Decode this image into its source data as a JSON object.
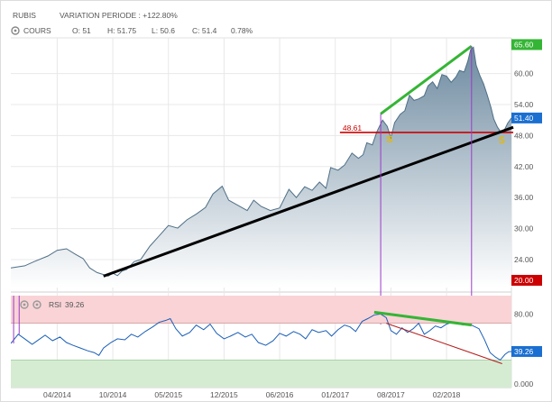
{
  "header": {
    "ticker": "RUBIS",
    "variation": "VARIATION PERIODE : +122.80%",
    "series_label": "COURS",
    "ohlc": {
      "open": "O: 51",
      "high": "H: 51.75",
      "low": "L: 50.6",
      "close": "C: 51.4",
      "change": "0.78%"
    }
  },
  "colors": {
    "price_line": "#4f6f86",
    "price_fill_top": "#6d8aa0",
    "price_fill_bottom": "#ffffff",
    "price_tag": "#1a6fd1",
    "resistance_tag": "#cc0000",
    "support_trend": "#000000",
    "horizontal_level": "#cc0000",
    "divergence_top": "#35b535",
    "divergence_rsi_low": "#b51c1c",
    "vertical_marker": "#9b3ac9",
    "rsi_line": "#1a5fb8",
    "rsi_overbought_band": "#f9d3d6",
    "rsi_oversold_band": "#d5ecd3",
    "grid": "#e8e8e8",
    "tag_text": "#ffffff",
    "change_positive": "#2c9a2c"
  },
  "chart_data": [
    {
      "type": "area",
      "title": "RUBIS",
      "series": [
        {
          "name": "COURS",
          "values": [
            [
              0.0,
              22.4
            ],
            [
              1.5,
              22.8
            ],
            [
              2.5,
              23.6
            ],
            [
              4.0,
              24.7
            ],
            [
              5.0,
              25.8
            ],
            [
              6.0,
              26.1
            ],
            [
              7.0,
              25.0
            ],
            [
              7.8,
              24.2
            ],
            [
              8.5,
              22.4
            ],
            [
              9.3,
              21.5
            ],
            [
              10.0,
              21.1
            ],
            [
              10.5,
              20.8
            ],
            [
              11.0,
              21.4
            ],
            [
              11.5,
              20.9
            ],
            [
              12.0,
              21.8
            ],
            [
              12.5,
              22.1
            ],
            [
              13.3,
              23.6
            ],
            [
              14.0,
              24.0
            ],
            [
              15.0,
              26.6
            ],
            [
              16.0,
              28.6
            ],
            [
              17.0,
              30.6
            ],
            [
              18.0,
              30.1
            ],
            [
              19.0,
              31.7
            ],
            [
              20.0,
              32.8
            ],
            [
              21.0,
              34.1
            ],
            [
              21.8,
              36.7
            ],
            [
              22.8,
              38.2
            ],
            [
              23.5,
              35.5
            ],
            [
              24.5,
              34.5
            ],
            [
              25.5,
              33.5
            ],
            [
              26.2,
              35.5
            ],
            [
              27.0,
              34.3
            ],
            [
              28.0,
              33.5
            ],
            [
              29.0,
              34.0
            ],
            [
              30.0,
              37.6
            ],
            [
              30.8,
              36.0
            ],
            [
              31.7,
              38.1
            ],
            [
              32.5,
              37.4
            ],
            [
              33.3,
              39.0
            ],
            [
              34.0,
              37.8
            ],
            [
              34.5,
              41.8
            ],
            [
              35.3,
              41.3
            ],
            [
              36.0,
              42.3
            ],
            [
              36.8,
              44.6
            ],
            [
              37.5,
              43.6
            ],
            [
              38.0,
              44.3
            ],
            [
              38.4,
              46.6
            ],
            [
              39.0,
              46.2
            ],
            [
              39.5,
              48.8
            ],
            [
              40.1,
              51.0
            ],
            [
              40.6,
              49.8
            ],
            [
              41.0,
              47.6
            ],
            [
              41.4,
              50.5
            ],
            [
              42.0,
              52.1
            ],
            [
              42.5,
              52.8
            ],
            [
              43.0,
              55.8
            ],
            [
              43.5,
              54.8
            ],
            [
              44.0,
              55.1
            ],
            [
              44.6,
              55.7
            ],
            [
              45.0,
              57.6
            ],
            [
              45.5,
              58.4
            ],
            [
              46.0,
              57.1
            ],
            [
              46.5,
              59.8
            ],
            [
              47.0,
              59.5
            ],
            [
              47.5,
              58.3
            ],
            [
              48.0,
              59.3
            ],
            [
              48.4,
              60.6
            ],
            [
              48.9,
              60.3
            ],
            [
              49.3,
              62.4
            ],
            [
              49.6,
              64.6
            ],
            [
              49.9,
              65.1
            ],
            [
              50.2,
              61.6
            ],
            [
              50.6,
              59.6
            ],
            [
              51.0,
              58.0
            ],
            [
              51.4,
              55.8
            ],
            [
              51.8,
              53.4
            ],
            [
              52.1,
              51.2
            ],
            [
              52.5,
              49.6
            ],
            [
              52.9,
              48.6
            ],
            [
              53.3,
              49.3
            ],
            [
              53.6,
              50.4
            ],
            [
              54.0,
              51.4
            ]
          ]
        }
      ],
      "x_tick_labels": [
        "04/2014",
        "10/2014",
        "05/2015",
        "12/2015",
        "06/2016",
        "01/2017",
        "08/2017",
        "02/2018"
      ],
      "x_tick_positions": [
        5,
        11,
        17,
        23,
        29,
        35,
        41,
        47
      ],
      "y_tick_labels": [
        "20.00",
        "24.00",
        "30.00",
        "36.00",
        "42.00",
        "48.00",
        "54.00",
        "60.00",
        "65.60"
      ],
      "y_ticks": [
        20,
        24,
        30,
        36,
        42,
        48,
        54,
        60,
        65.6
      ],
      "ylim": [
        18.6,
        66.9
      ],
      "xlim": [
        0,
        54
      ],
      "value_tags": {
        "resistance": "20.00",
        "upper": "65.60",
        "last": "51.40"
      },
      "annotations": {
        "level_label": "48.61",
        "level_value": 48.61,
        "support_label_1": "S",
        "support_label_2": "S",
        "trendline_support": [
          [
            10.0,
            20.8
          ],
          [
            54.2,
            49.6
          ]
        ],
        "trendline_top": [
          [
            39.9,
            52.2
          ],
          [
            49.7,
            65.3
          ]
        ],
        "horizontal_level": [
          [
            35.5,
            48.61
          ],
          [
            54.2,
            48.61
          ]
        ],
        "vertical_markers_x": [
          39.9,
          49.7
        ]
      }
    },
    {
      "type": "line",
      "title": "RSI",
      "series": [
        {
          "name": "RSI",
          "values": [
            [
              0.0,
              48
            ],
            [
              0.8,
              58
            ],
            [
              1.5,
              53
            ],
            [
              2.3,
              47
            ],
            [
              3.0,
              52
            ],
            [
              3.7,
              57
            ],
            [
              4.5,
              51
            ],
            [
              5.3,
              55
            ],
            [
              6.0,
              49
            ],
            [
              6.7,
              46
            ],
            [
              7.5,
              43
            ],
            [
              8.3,
              40
            ],
            [
              9.0,
              38
            ],
            [
              9.5,
              35
            ],
            [
              10.0,
              43
            ],
            [
              10.8,
              49
            ],
            [
              11.5,
              53
            ],
            [
              12.3,
              52
            ],
            [
              13.0,
              58
            ],
            [
              13.7,
              55
            ],
            [
              14.5,
              61
            ],
            [
              15.3,
              66
            ],
            [
              16.0,
              71
            ],
            [
              16.7,
              73
            ],
            [
              17.2,
              75
            ],
            [
              17.8,
              64
            ],
            [
              18.5,
              56
            ],
            [
              19.3,
              60
            ],
            [
              20.0,
              68
            ],
            [
              20.8,
              63
            ],
            [
              21.5,
              69
            ],
            [
              22.2,
              59
            ],
            [
              23.0,
              53
            ],
            [
              23.7,
              56
            ],
            [
              24.5,
              60
            ],
            [
              25.3,
              55
            ],
            [
              26.0,
              58
            ],
            [
              26.7,
              49
            ],
            [
              27.5,
              46
            ],
            [
              28.3,
              51
            ],
            [
              29.0,
              59
            ],
            [
              29.7,
              56
            ],
            [
              30.5,
              61
            ],
            [
              31.2,
              58
            ],
            [
              31.8,
              53
            ],
            [
              32.5,
              63
            ],
            [
              33.2,
              60
            ],
            [
              34.0,
              62
            ],
            [
              34.6,
              56
            ],
            [
              35.3,
              63
            ],
            [
              36.0,
              68
            ],
            [
              36.6,
              66
            ],
            [
              37.2,
              61
            ],
            [
              37.9,
              72
            ],
            [
              38.5,
              75
            ],
            [
              39.2,
              79
            ],
            [
              39.9,
              80
            ],
            [
              40.5,
              76
            ],
            [
              41.0,
              62
            ],
            [
              41.6,
              58
            ],
            [
              42.2,
              65
            ],
            [
              42.8,
              60
            ],
            [
              43.4,
              64
            ],
            [
              44.0,
              70
            ],
            [
              44.6,
              58
            ],
            [
              45.2,
              62
            ],
            [
              45.8,
              67
            ],
            [
              46.4,
              65
            ],
            [
              47.0,
              69
            ],
            [
              47.6,
              71
            ],
            [
              48.2,
              70
            ],
            [
              48.8,
              68
            ],
            [
              49.4,
              69
            ],
            [
              49.9,
              67
            ],
            [
              50.5,
              64
            ],
            [
              51.1,
              52
            ],
            [
              51.7,
              38
            ],
            [
              52.3,
              33
            ],
            [
              52.8,
              30
            ],
            [
              53.3,
              36
            ],
            [
              53.7,
              39
            ],
            [
              54.0,
              39.26
            ]
          ]
        }
      ],
      "label": "RSI",
      "value_label": "39.26",
      "y_tick_labels": [
        "80.00",
        "40.00",
        "0.000"
      ],
      "y_ticks": [
        80,
        40,
        0
      ],
      "ylim": [
        0,
        100
      ],
      "bands": {
        "overbought": [
          70,
          100
        ],
        "oversold": [
          0,
          30
        ]
      },
      "annotations": {
        "divergence_top": [
          [
            39.2,
            82
          ],
          [
            49.7,
            68
          ]
        ],
        "divergence_low": [
          [
            40.5,
            70
          ],
          [
            53.0,
            26
          ]
        ]
      }
    }
  ]
}
